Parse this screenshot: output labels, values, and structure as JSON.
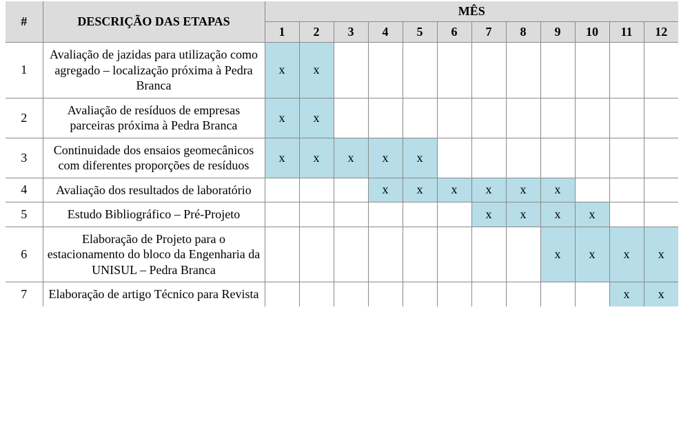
{
  "headers": {
    "index": "#",
    "description": "DESCRIÇÃO DAS ETAPAS",
    "month_group": "MÊS",
    "months": [
      "1",
      "2",
      "3",
      "4",
      "5",
      "6",
      "7",
      "8",
      "9",
      "10",
      "11",
      "12"
    ]
  },
  "mark_glyph": "x",
  "colors": {
    "header_bg": "#dcdcdc",
    "mark_bg": "#b6dde8",
    "border": "#8a8a8a",
    "text": "#000000",
    "background": "#ffffff"
  },
  "font": {
    "family": "Times New Roman",
    "size_pt": 13,
    "header_weight": "bold"
  },
  "rows": [
    {
      "index": "1",
      "description": "Avaliação de jazidas para utilização como agregado – localização próxima à Pedra Branca",
      "marks": [
        true,
        true,
        false,
        false,
        false,
        false,
        false,
        false,
        false,
        false,
        false,
        false
      ]
    },
    {
      "index": "2",
      "description": "Avaliação de resíduos de empresas parceiras próxima à Pedra Branca",
      "marks": [
        true,
        true,
        false,
        false,
        false,
        false,
        false,
        false,
        false,
        false,
        false,
        false
      ]
    },
    {
      "index": "3",
      "description": "Continuidade dos ensaios geomecânicos com diferentes proporções de resíduos",
      "marks": [
        true,
        true,
        true,
        true,
        true,
        false,
        false,
        false,
        false,
        false,
        false,
        false
      ]
    },
    {
      "index": "4",
      "description": "Avaliação dos resultados de laboratório",
      "marks": [
        false,
        false,
        false,
        true,
        true,
        true,
        true,
        true,
        true,
        false,
        false,
        false
      ]
    },
    {
      "index": "5",
      "description": "Estudo Bibliográfico – Pré-Projeto",
      "marks": [
        false,
        false,
        false,
        false,
        false,
        false,
        true,
        true,
        true,
        true,
        false,
        false
      ]
    },
    {
      "index": "6",
      "description": "Elaboração de Projeto para o estacionamento do bloco da Engenharia da UNISUL – Pedra Branca",
      "marks": [
        false,
        false,
        false,
        false,
        false,
        false,
        false,
        false,
        true,
        true,
        true,
        true
      ]
    },
    {
      "index": "7",
      "description": "Elaboração de artigo Técnico para Revista",
      "marks": [
        false,
        false,
        false,
        false,
        false,
        false,
        false,
        false,
        false,
        false,
        true,
        true
      ]
    }
  ]
}
